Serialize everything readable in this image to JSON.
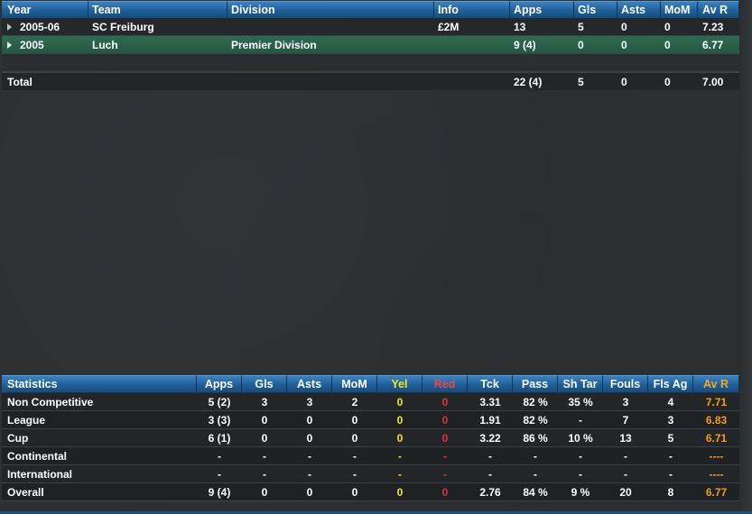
{
  "career": {
    "headers": {
      "year": "Year",
      "team": "Team",
      "division": "Division",
      "info": "Info",
      "apps": "Apps",
      "gls": "Gls",
      "asts": "Asts",
      "mom": "MoM",
      "avr": "Av R"
    },
    "rows": [
      {
        "year": "2005-06",
        "team": "SC Freiburg",
        "division": "",
        "info": "£2M",
        "apps": "13",
        "gls": "5",
        "asts": "0",
        "mom": "0",
        "avr": "7.23"
      },
      {
        "year": "2005",
        "team": "Luch",
        "division": "Premier Division",
        "info": "",
        "apps": "9 (4)",
        "gls": "0",
        "asts": "0",
        "mom": "0",
        "avr": "6.77"
      }
    ],
    "total": {
      "label": "Total",
      "apps": "22 (4)",
      "gls": "5",
      "asts": "0",
      "mom": "0",
      "avr": "7.00"
    }
  },
  "stats": {
    "headers": {
      "name": "Statistics",
      "apps": "Apps",
      "gls": "Gls",
      "asts": "Asts",
      "mom": "MoM",
      "yel": "Yel",
      "red": "Red",
      "tck": "Tck",
      "pass": "Pass",
      "shtar": "Sh Tar",
      "fouls": "Fouls",
      "flsag": "Fls Ag",
      "avr": "Av R"
    },
    "rows": [
      {
        "name": "Non Competitive",
        "apps": "5 (2)",
        "gls": "3",
        "asts": "3",
        "mom": "2",
        "yel": "0",
        "red": "0",
        "tck": "3.31",
        "pass": "82 %",
        "shtar": "35 %",
        "fouls": "3",
        "flsag": "4",
        "avr": "7.71"
      },
      {
        "name": "League",
        "apps": "3 (3)",
        "gls": "0",
        "asts": "0",
        "mom": "0",
        "yel": "0",
        "red": "0",
        "tck": "1.91",
        "pass": "82 %",
        "shtar": "-",
        "fouls": "7",
        "flsag": "3",
        "avr": "6.83"
      },
      {
        "name": "Cup",
        "apps": "6 (1)",
        "gls": "0",
        "asts": "0",
        "mom": "0",
        "yel": "0",
        "red": "0",
        "tck": "3.22",
        "pass": "86 %",
        "shtar": "10 %",
        "fouls": "13",
        "flsag": "5",
        "avr": "6.71"
      },
      {
        "name": "Continental",
        "apps": "-",
        "gls": "-",
        "asts": "-",
        "mom": "-",
        "yel": "-",
        "red": "-",
        "tck": "-",
        "pass": "-",
        "shtar": "-",
        "fouls": "-",
        "flsag": "-",
        "avr": "----"
      },
      {
        "name": "International",
        "apps": "-",
        "gls": "-",
        "asts": "-",
        "mom": "-",
        "yel": "-",
        "red": "-",
        "tck": "-",
        "pass": "-",
        "shtar": "-",
        "fouls": "-",
        "flsag": "-",
        "avr": "----"
      },
      {
        "name": "Overall",
        "apps": "9 (4)",
        "gls": "0",
        "asts": "0",
        "mom": "0",
        "yel": "0",
        "red": "0",
        "tck": "2.76",
        "pass": "84 %",
        "shtar": "9 %",
        "fouls": "20",
        "flsag": "8",
        "avr": "6.77"
      }
    ]
  },
  "colors": {
    "header_blue": "#1f5f99",
    "selected_green": "#2f6a50",
    "yellow_card": "#f4e51e",
    "red_card": "#e53232",
    "rating_orange": "#f29c1b"
  },
  "icons": {
    "row_expand": "triangle-right-icon"
  }
}
